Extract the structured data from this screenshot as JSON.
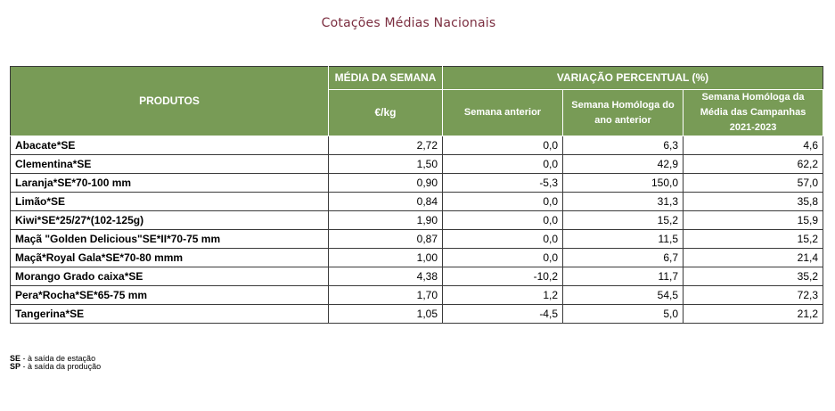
{
  "title": "Cotações Médias Nacionais",
  "table": {
    "header": {
      "produtos": "PRODUTOS",
      "media_semana": "MÉDIA DA SEMANA",
      "unit": "€/kg",
      "variacao": "VARIAÇÃO PERCENTUAL (%)",
      "semana_anterior": "Semana anterior",
      "semana_homologa": "Semana Homóloga do ano anterior",
      "semana_homologa_media": "Semana Homóloga da Média das Campanhas 2021-2023"
    },
    "rows": [
      {
        "produto": "Abacate*SE",
        "media": "2,72",
        "var_semana": "0,0",
        "var_homologa": "6,3",
        "var_media_campanhas": "4,6"
      },
      {
        "produto": "Clementina*SE",
        "media": "1,50",
        "var_semana": "0,0",
        "var_homologa": "42,9",
        "var_media_campanhas": "62,2"
      },
      {
        "produto": "Laranja*SE*70-100 mm",
        "media": "0,90",
        "var_semana": "-5,3",
        "var_homologa": "150,0",
        "var_media_campanhas": "57,0"
      },
      {
        "produto": "Limão*SE",
        "media": "0,84",
        "var_semana": "0,0",
        "var_homologa": "31,3",
        "var_media_campanhas": "35,8"
      },
      {
        "produto": "Kiwi*SE*25/27*(102-125g)",
        "media": "1,90",
        "var_semana": "0,0",
        "var_homologa": "15,2",
        "var_media_campanhas": "15,9"
      },
      {
        "produto": "Maçã \"Golden Delicious\"SE*II*70-75 mm",
        "media": "0,87",
        "var_semana": "0,0",
        "var_homologa": "11,5",
        "var_media_campanhas": "15,2"
      },
      {
        "produto": "Maçã*Royal Gala*SE*70-80 mmm",
        "media": "1,00",
        "var_semana": "0,0",
        "var_homologa": "6,7",
        "var_media_campanhas": "21,4"
      },
      {
        "produto": "Morango Grado caixa*SE",
        "media": "4,38",
        "var_semana": "-10,2",
        "var_homologa": "11,7",
        "var_media_campanhas": "35,2"
      },
      {
        "produto": "Pera*Rocha*SE*65-75 mm",
        "media": "1,70",
        "var_semana": "1,2",
        "var_homologa": "54,5",
        "var_media_campanhas": "72,3"
      },
      {
        "produto": "Tangerina*SE",
        "media": "1,05",
        "var_semana": "-4,5",
        "var_homologa": "5,0",
        "var_media_campanhas": "21,2"
      }
    ]
  },
  "notes": [
    {
      "abbr": "SE",
      "text": " - à saída de estação"
    },
    {
      "abbr": "SP",
      "text": " - à saída da produção"
    }
  ],
  "colors": {
    "header_bg": "#789b56",
    "title": "#7b2d3f"
  }
}
